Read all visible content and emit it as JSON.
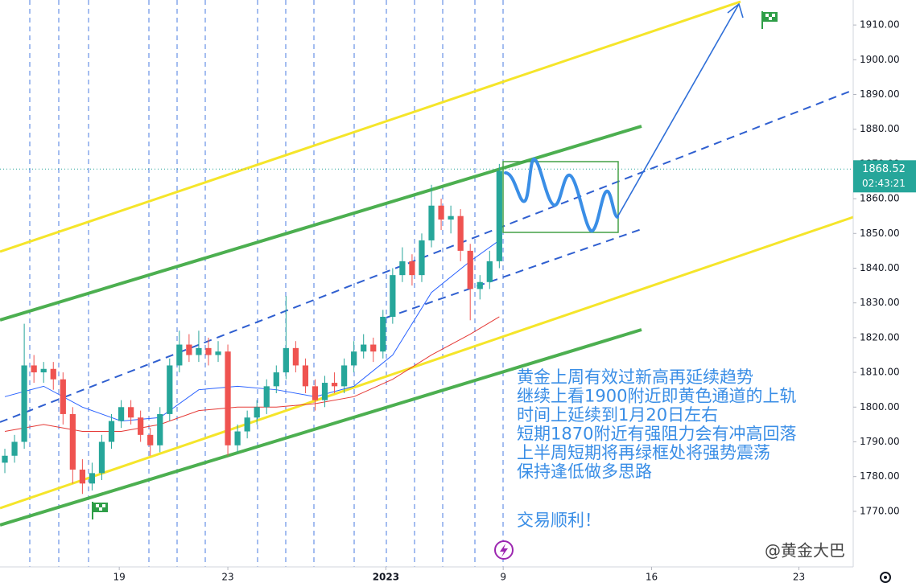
{
  "chart_data": {
    "type": "candlestick",
    "x": [
      0.5,
      1.5,
      2.5,
      3.5,
      4.5,
      5.5,
      6.5,
      7.5,
      8.5,
      9.5,
      10.5,
      11.5,
      12.5,
      13.5,
      14.5,
      15.5,
      16.5,
      17.5,
      18.5,
      19.5,
      20.5,
      21.5,
      22.5,
      23.5,
      24.5,
      25.5,
      26.5,
      27.5,
      28.5,
      29.5,
      30.5,
      31.5,
      32.5,
      33.5,
      34.5,
      35.5,
      36.5,
      37.5,
      38.5,
      39.5,
      40.5,
      41.5,
      42.5,
      43.5,
      44.5,
      45.5,
      46.5,
      47.5,
      48.5,
      49.5,
      50.5,
      51.5
    ],
    "open": [
      1784,
      1786,
      1790,
      1812,
      1810,
      1811,
      1808,
      1798,
      1782,
      1778,
      1781,
      1790,
      1796,
      1800,
      1797,
      1792,
      1789,
      1798,
      1812,
      1818,
      1815,
      1817,
      1815,
      1816,
      1789,
      1793,
      1797,
      1800,
      1806,
      1810,
      1817,
      1812,
      1806,
      1802,
      1807,
      1806,
      1812,
      1816,
      1818,
      1816,
      1826,
      1838,
      1842,
      1838,
      1848,
      1858,
      1854,
      1855,
      1845,
      1834,
      1836,
      1842
    ],
    "high": [
      1788,
      1792,
      1824,
      1815,
      1813,
      1813,
      1810,
      1800,
      1785,
      1784,
      1792,
      1798,
      1802,
      1802,
      1799,
      1794,
      1800,
      1814,
      1822,
      1821,
      1822,
      1820,
      1819,
      1818,
      1795,
      1799,
      1802,
      1808,
      1812,
      1832,
      1819,
      1814,
      1808,
      1809,
      1810,
      1814,
      1819,
      1821,
      1820,
      1828,
      1840,
      1846,
      1844,
      1850,
      1864,
      1860,
      1858,
      1857,
      1847,
      1838,
      1845,
      1870
    ],
    "low": [
      1781,
      1784,
      1788,
      1807,
      1807,
      1805,
      1795,
      1778,
      1775,
      1776,
      1779,
      1788,
      1794,
      1795,
      1790,
      1786,
      1787,
      1796,
      1810,
      1813,
      1813,
      1812,
      1813,
      1786,
      1787,
      1791,
      1795,
      1798,
      1804,
      1808,
      1810,
      1804,
      1799,
      1800,
      1804,
      1804,
      1810,
      1814,
      1813,
      1814,
      1824,
      1836,
      1835,
      1836,
      1846,
      1851,
      1850,
      1842,
      1825,
      1831,
      1834,
      1840
    ],
    "close": [
      1786,
      1790,
      1812,
      1810,
      1811,
      1808,
      1798,
      1782,
      1778,
      1781,
      1790,
      1796,
      1800,
      1797,
      1792,
      1789,
      1798,
      1812,
      1818,
      1815,
      1817,
      1815,
      1816,
      1789,
      1793,
      1797,
      1800,
      1806,
      1810,
      1817,
      1812,
      1806,
      1802,
      1807,
      1806,
      1812,
      1816,
      1818,
      1816,
      1826,
      1838,
      1842,
      1838,
      1848,
      1858,
      1854,
      1855,
      1845,
      1834,
      1836,
      1842,
      1868
    ],
    "up_color": "#26a69a",
    "down_color": "#ef5350",
    "lines": [
      {
        "color": "#2962ff",
        "x": [
          0.5,
          4.5,
          8.5,
          12.5,
          16.5,
          20.5,
          24.5,
          28.5,
          32.5,
          36.5,
          40.5,
          44.5,
          48.5,
          51.5
        ],
        "values": [
          1803,
          1806,
          1800,
          1796,
          1797,
          1805,
          1806,
          1805,
          1803,
          1806,
          1815,
          1833,
          1842,
          1848
        ]
      },
      {
        "color": "#e53935",
        "x": [
          0.5,
          4.5,
          8.5,
          12.5,
          16.5,
          20.5,
          24.5,
          28.5,
          32.5,
          36.5,
          40.5,
          44.5,
          48.5,
          51.5
        ],
        "values": [
          1793,
          1795,
          1793,
          1793,
          1795,
          1799,
          1800,
          1800,
          1801,
          1803,
          1808,
          1815,
          1821,
          1826
        ]
      }
    ],
    "xlim": [
      0,
      88
    ],
    "xticks": [
      {
        "value": 12.3,
        "label": "19"
      },
      {
        "value": 23.5,
        "label": "23"
      },
      {
        "value": 39.8,
        "label": "2023"
      },
      {
        "value": 51.9,
        "label": "9"
      },
      {
        "value": 67.2,
        "label": "16"
      },
      {
        "value": 82.4,
        "label": "23"
      }
    ],
    "ylim": [
      1754,
      1917.2
    ],
    "yticks": [
      {
        "value": 1770,
        "label": "1770.00"
      },
      {
        "value": 1780,
        "label": "1780.00"
      },
      {
        "value": 1790,
        "label": "1790.00"
      },
      {
        "value": 1800,
        "label": "1800.00"
      },
      {
        "value": 1810,
        "label": "1810.00"
      },
      {
        "value": 1820,
        "label": "1820.00"
      },
      {
        "value": 1830,
        "label": "1830.00"
      },
      {
        "value": 1840,
        "label": "1840.00"
      },
      {
        "value": 1850,
        "label": "1850.00"
      },
      {
        "value": 1860,
        "label": "1860.00"
      },
      {
        "value": 1870,
        "label": "1870.00"
      },
      {
        "value": 1880,
        "label": "1880.00"
      },
      {
        "value": 1890,
        "label": "1890.00"
      },
      {
        "value": 1900,
        "label": "1900.00"
      },
      {
        "value": 1910,
        "label": "1910.00"
      }
    ],
    "last_price": 1868.52,
    "countdown": "02:43:21",
    "grid": false,
    "annotations": [
      "黄金上周有效过新高再延续趋势",
      "继续上看1900附近即黄色通道的上轨",
      "时间上延续到1月20日左右",
      "短期1870附近有强阻力会有冲高回落",
      "上半周短期将再绿框处将强势震荡",
      "保持逢低做多思路",
      "交易顺利！"
    ],
    "watermark": "@黄金大巴"
  }
}
